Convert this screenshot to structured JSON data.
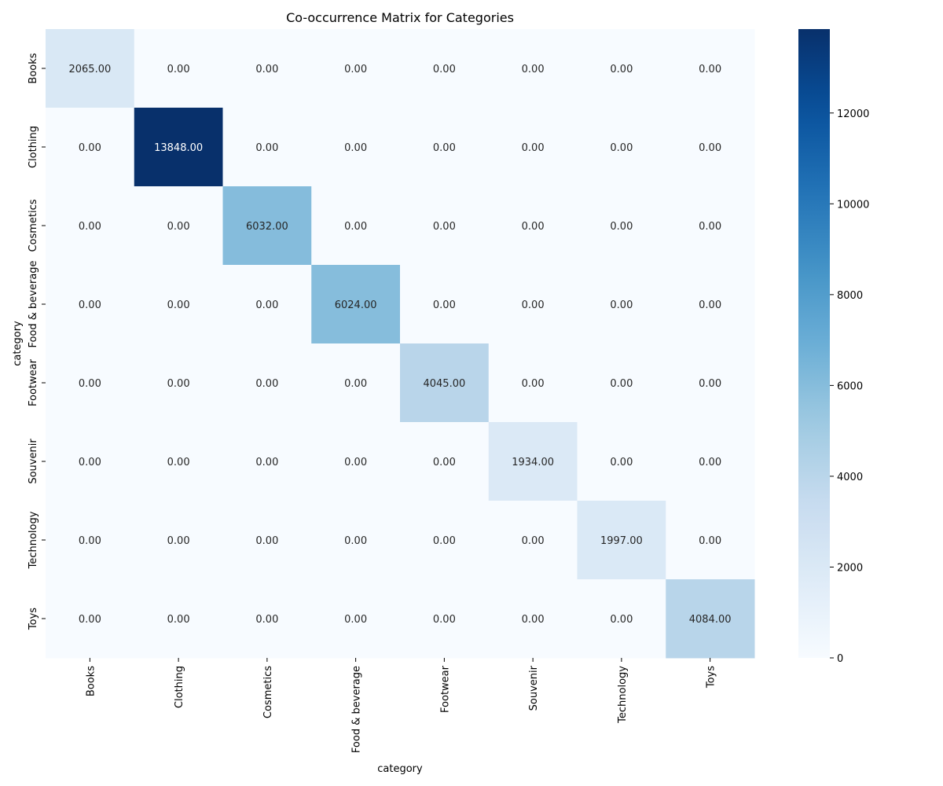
{
  "chart_data": {
    "type": "heatmap",
    "title": "Co-occurrence Matrix for Categories",
    "xlabel": "category",
    "ylabel": "category",
    "x_categories": [
      "Books",
      "Clothing",
      "Cosmetics",
      "Food & beverage",
      "Footwear",
      "Souvenir",
      "Technology",
      "Toys"
    ],
    "y_categories": [
      "Books",
      "Clothing",
      "Cosmetics",
      "Food & beverage",
      "Footwear",
      "Souvenir",
      "Technology",
      "Toys"
    ],
    "values": [
      [
        2065,
        0,
        0,
        0,
        0,
        0,
        0,
        0
      ],
      [
        0,
        13848,
        0,
        0,
        0,
        0,
        0,
        0
      ],
      [
        0,
        0,
        6032,
        0,
        0,
        0,
        0,
        0
      ],
      [
        0,
        0,
        0,
        6024,
        0,
        0,
        0,
        0
      ],
      [
        0,
        0,
        0,
        0,
        4045,
        0,
        0,
        0
      ],
      [
        0,
        0,
        0,
        0,
        0,
        1934,
        0,
        0
      ],
      [
        0,
        0,
        0,
        0,
        0,
        0,
        1997,
        0
      ],
      [
        0,
        0,
        0,
        0,
        0,
        0,
        0,
        4084
      ]
    ],
    "value_format": "0.00",
    "colormap": "Blues",
    "colorbar": {
      "range": [
        0,
        13848
      ],
      "ticks": [
        0,
        2000,
        4000,
        6000,
        8000,
        10000,
        12000
      ],
      "tick_labels": [
        "0",
        "2000",
        "4000",
        "6000",
        "8000",
        "10000",
        "12000"
      ]
    },
    "grid": false
  }
}
